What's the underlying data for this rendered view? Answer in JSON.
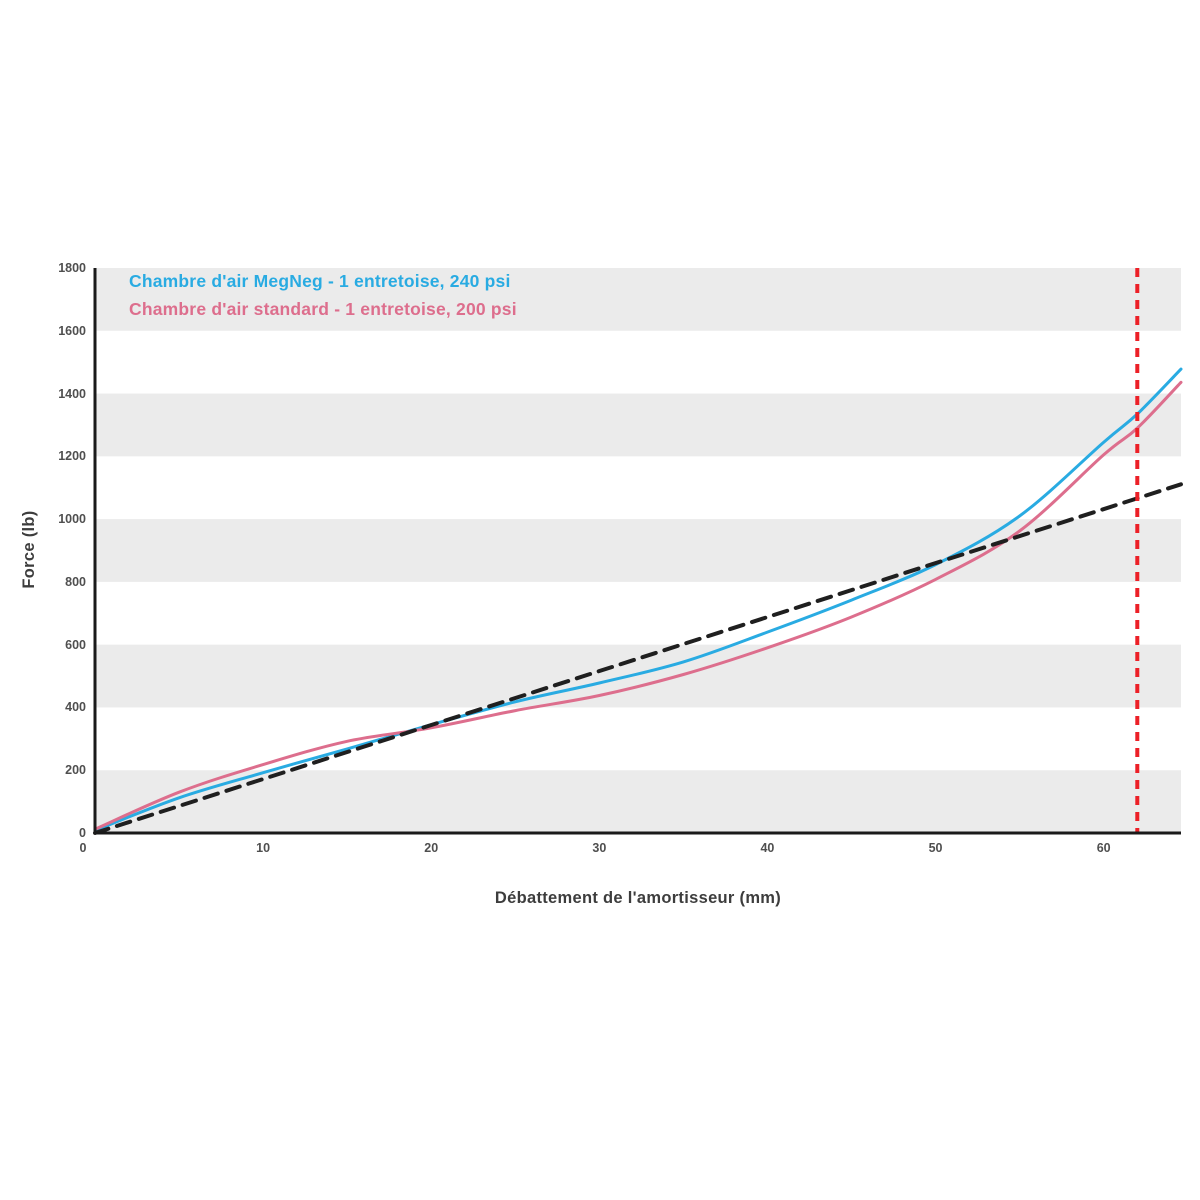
{
  "chart_data": {
    "type": "line",
    "title": "",
    "xlabel": "Débattement de l'amortisseur (mm)",
    "ylabel": "Force (lb)",
    "xlim": [
      0,
      64.6
    ],
    "ylim": [
      0,
      1800
    ],
    "x_ticks": [
      0,
      10,
      20,
      30,
      40,
      50,
      60
    ],
    "y_ticks": [
      0,
      200,
      400,
      600,
      800,
      1000,
      1200,
      1400,
      1600,
      1800
    ],
    "grid": "alternating horizontal gray bands every 200 lb, gray on even bands starting at 0",
    "legend_position": "top-left inside plot, colored text without markers",
    "series": [
      {
        "name": "Chambre d'air MegNeg - 1 entretoise, 240 psi",
        "color": "#29abe2",
        "style": "solid",
        "width": 3,
        "smooth": true,
        "in_legend": true,
        "x": [
          0,
          5,
          10,
          15,
          20,
          25,
          30,
          35,
          40,
          45,
          50,
          55,
          60,
          62,
          64.6
        ],
        "y": [
          8,
          112,
          192,
          268,
          345,
          418,
          478,
          545,
          640,
          742,
          855,
          1010,
          1245,
          1335,
          1478
        ]
      },
      {
        "name": "Chambre d'air standard - 1 entretoise, 200 psi",
        "color": "#dd6e8d",
        "style": "solid",
        "width": 3,
        "smooth": true,
        "in_legend": true,
        "x": [
          0,
          5,
          10,
          15,
          20,
          25,
          30,
          35,
          40,
          45,
          50,
          55,
          60,
          62,
          64.6
        ],
        "y": [
          12,
          130,
          218,
          292,
          335,
          390,
          438,
          505,
          590,
          688,
          808,
          962,
          1205,
          1290,
          1436
        ]
      },
      {
        "name": "linear-coil-reference",
        "color": "#1f1f1f",
        "style": "dashed",
        "width": 4,
        "smooth": false,
        "in_legend": false,
        "x": [
          0,
          64.6
        ],
        "y": [
          0,
          1111
        ]
      }
    ],
    "annotations": [
      {
        "type": "vline",
        "x": 62,
        "color": "#ec2027",
        "style": "dashed",
        "width": 4
      }
    ]
  },
  "colors": {
    "band": "#ebebeb",
    "axis": "#1a1a1a",
    "background": "#ffffff"
  }
}
